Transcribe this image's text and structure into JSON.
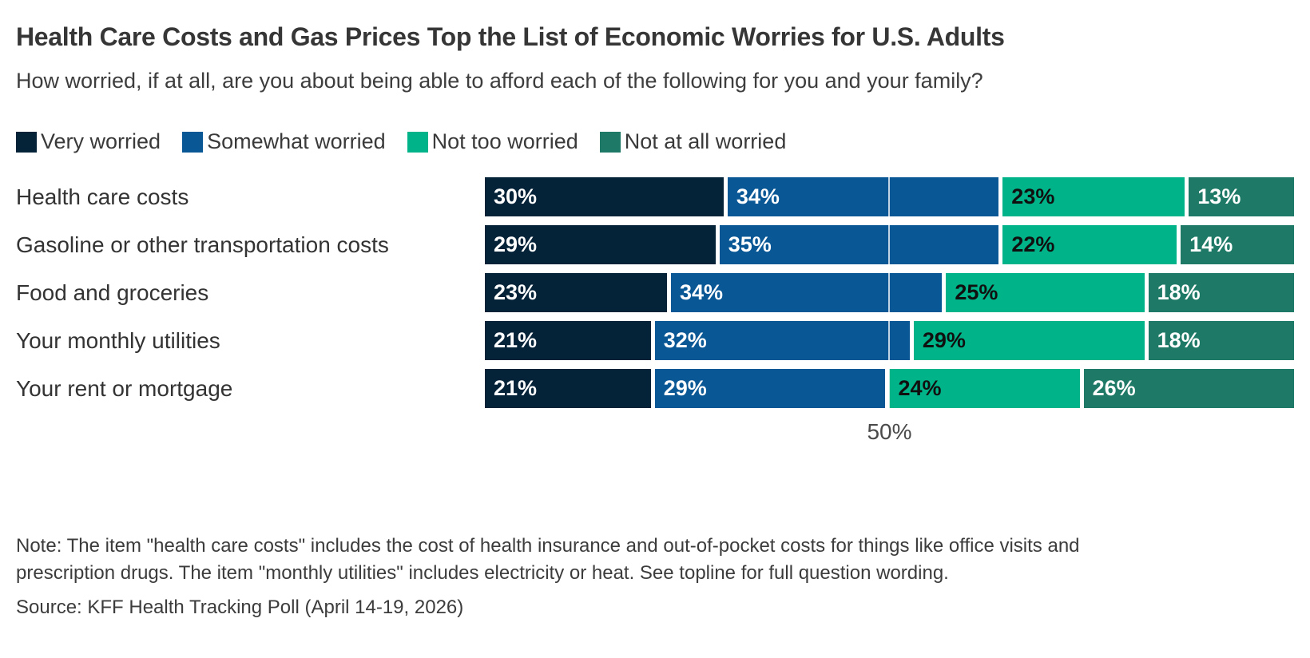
{
  "header": {
    "title": "Health Care Costs and Gas Prices Top the List of Economic Worries for U.S. Adults",
    "subtitle": "How worried, if at all, are you about being able to afford each of the following for you and your family?"
  },
  "chart_data": {
    "type": "bar",
    "orientation": "horizontal_stacked",
    "title": "Health Care Costs and Gas Prices Top the List of Economic Worries for U.S. Adults",
    "subtitle": "How worried, if at all, are you about being able to afford each of the following for you and your family?",
    "categories": [
      "Health care costs",
      "Gasoline or other transportation costs",
      "Food and groceries",
      "Your monthly utilities",
      "Your rent or mortgage"
    ],
    "series": [
      {
        "name": "Very worried",
        "color": "#042238",
        "label_color": "#ffffff",
        "values": [
          30,
          29,
          23,
          21,
          21
        ]
      },
      {
        "name": "Somewhat worried",
        "color": "#0a5796",
        "label_color": "#ffffff",
        "values": [
          34,
          35,
          34,
          32,
          29
        ]
      },
      {
        "name": "Not too worried",
        "color": "#00b388",
        "label_color": "#101010",
        "values": [
          23,
          22,
          25,
          29,
          24
        ]
      },
      {
        "name": "Not at all worried",
        "color": "#1e7a66",
        "label_color": "#ffffff",
        "values": [
          13,
          14,
          18,
          18,
          26
        ]
      }
    ],
    "value_suffix": "%",
    "xlim": [
      0,
      100
    ],
    "grid": "single vertical reference line at 50",
    "tick_value": 50,
    "tick_label": "50%",
    "legend_position": "top"
  },
  "footer": {
    "note": "Note: The item \"health care costs\" includes the cost of health insurance and out-of-pocket costs for things like office visits and prescription drugs. The item \"monthly utilities\" includes electricity or heat. See topline for full question wording.",
    "source": "Source: KFF Health Tracking Poll (April 14-19, 2026)"
  }
}
